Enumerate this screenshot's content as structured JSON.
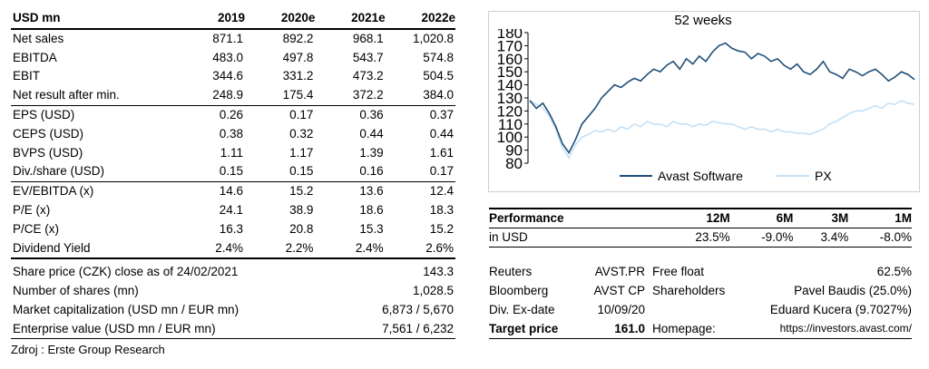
{
  "financials": {
    "header": {
      "label": "USD mn",
      "years": [
        "2019",
        "2020e",
        "2021e",
        "2022e"
      ]
    },
    "groups": [
      [
        {
          "label": "Net sales",
          "values": [
            "871.1",
            "892.2",
            "968.1",
            "1,020.8"
          ]
        },
        {
          "label": "EBITDA",
          "values": [
            "483.0",
            "497.8",
            "543.7",
            "574.8"
          ]
        },
        {
          "label": "EBIT",
          "values": [
            "344.6",
            "331.2",
            "473.2",
            "504.5"
          ]
        },
        {
          "label": "Net result after min.",
          "values": [
            "248.9",
            "175.4",
            "372.2",
            "384.0"
          ]
        }
      ],
      [
        {
          "label": "EPS (USD)",
          "values": [
            "0.26",
            "0.17",
            "0.36",
            "0.37"
          ]
        },
        {
          "label": "CEPS (USD)",
          "values": [
            "0.38",
            "0.32",
            "0.44",
            "0.44"
          ]
        },
        {
          "label": "BVPS (USD)",
          "values": [
            "1.11",
            "1.17",
            "1.39",
            "1.61"
          ]
        },
        {
          "label": "Div./share (USD)",
          "values": [
            "0.15",
            "0.15",
            "0.16",
            "0.17"
          ]
        }
      ],
      [
        {
          "label": "EV/EBITDA (x)",
          "values": [
            "14.6",
            "15.2",
            "13.6",
            "12.4"
          ]
        },
        {
          "label": "P/E (x)",
          "values": [
            "24.1",
            "38.9",
            "18.6",
            "18.3"
          ]
        },
        {
          "label": "P/CE (x)",
          "values": [
            "16.3",
            "20.8",
            "15.3",
            "15.2"
          ]
        },
        {
          "label": "Dividend Yield",
          "values": [
            "2.4%",
            "2.2%",
            "2.4%",
            "2.6%"
          ]
        }
      ]
    ]
  },
  "share_info": [
    {
      "label": "Share price (CZK) close as of 24/02/2021",
      "value": "143.3"
    },
    {
      "label": "Number of shares (mn)",
      "value": "1,028.5"
    },
    {
      "label": "Market capitalization (USD mn / EUR mn)",
      "value": "6,873 / 5,670"
    },
    {
      "label": "Enterprise value (USD mn / EUR mn)",
      "value": "7,561 / 6,232"
    }
  ],
  "chart_data": {
    "type": "line",
    "title": "52 weeks",
    "ylim": [
      80,
      180
    ],
    "yticks": [
      80,
      90,
      100,
      110,
      120,
      130,
      140,
      150,
      160,
      170,
      180
    ],
    "grid": false,
    "legend_position": "bottom",
    "colors": {
      "Avast Software": "#1f4e79",
      "PX": "#c5e0f5"
    },
    "series": [
      {
        "name": "Avast Software",
        "values": [
          128,
          122,
          126,
          118,
          108,
          95,
          88,
          98,
          110,
          116,
          122,
          130,
          135,
          140,
          138,
          142,
          145,
          143,
          148,
          152,
          150,
          155,
          158,
          152,
          160,
          156,
          162,
          158,
          165,
          170,
          172,
          168,
          166,
          165,
          160,
          164,
          162,
          158,
          160,
          155,
          152,
          156,
          150,
          148,
          152,
          158,
          150,
          148,
          145,
          152,
          150,
          147,
          150,
          152,
          148,
          143,
          146,
          150,
          148,
          144
        ]
      },
      {
        "name": "PX",
        "values": [
          128,
          125,
          122,
          116,
          106,
          92,
          84,
          94,
          100,
          102,
          105,
          104,
          106,
          104,
          108,
          106,
          110,
          108,
          112,
          110,
          110,
          108,
          112,
          110,
          110,
          108,
          110,
          109,
          112,
          111,
          110,
          110,
          108,
          106,
          108,
          106,
          106,
          104,
          106,
          104,
          104,
          103,
          103,
          102,
          104,
          106,
          110,
          112,
          115,
          118,
          120,
          120,
          122,
          124,
          122,
          126,
          125,
          128,
          126,
          125
        ]
      }
    ]
  },
  "performance": {
    "header": {
      "label": "Performance",
      "periods": [
        "12M",
        "6M",
        "3M",
        "1M"
      ]
    },
    "row": {
      "label": "in USD",
      "values": [
        "23.5%",
        "-9.0%",
        "3.4%",
        "-8.0%"
      ]
    }
  },
  "info_rows": [
    {
      "a": "Reuters",
      "b": "AVST.PR",
      "c": "Free float",
      "d": "62.5%"
    },
    {
      "a": "Bloomberg",
      "b": "AVST CP",
      "c": "Shareholders",
      "d": "Pavel Baudis (25.0%)"
    },
    {
      "a": "Div. Ex-date",
      "b": "10/09/20",
      "c": "",
      "d": "Eduard Kucera (9.7027%)"
    },
    {
      "a": "Target price",
      "b": "161.0",
      "c": "Homepage:",
      "d": "https://investors.avast.com/"
    }
  ],
  "source": "Zdroj : Erste Group Research"
}
